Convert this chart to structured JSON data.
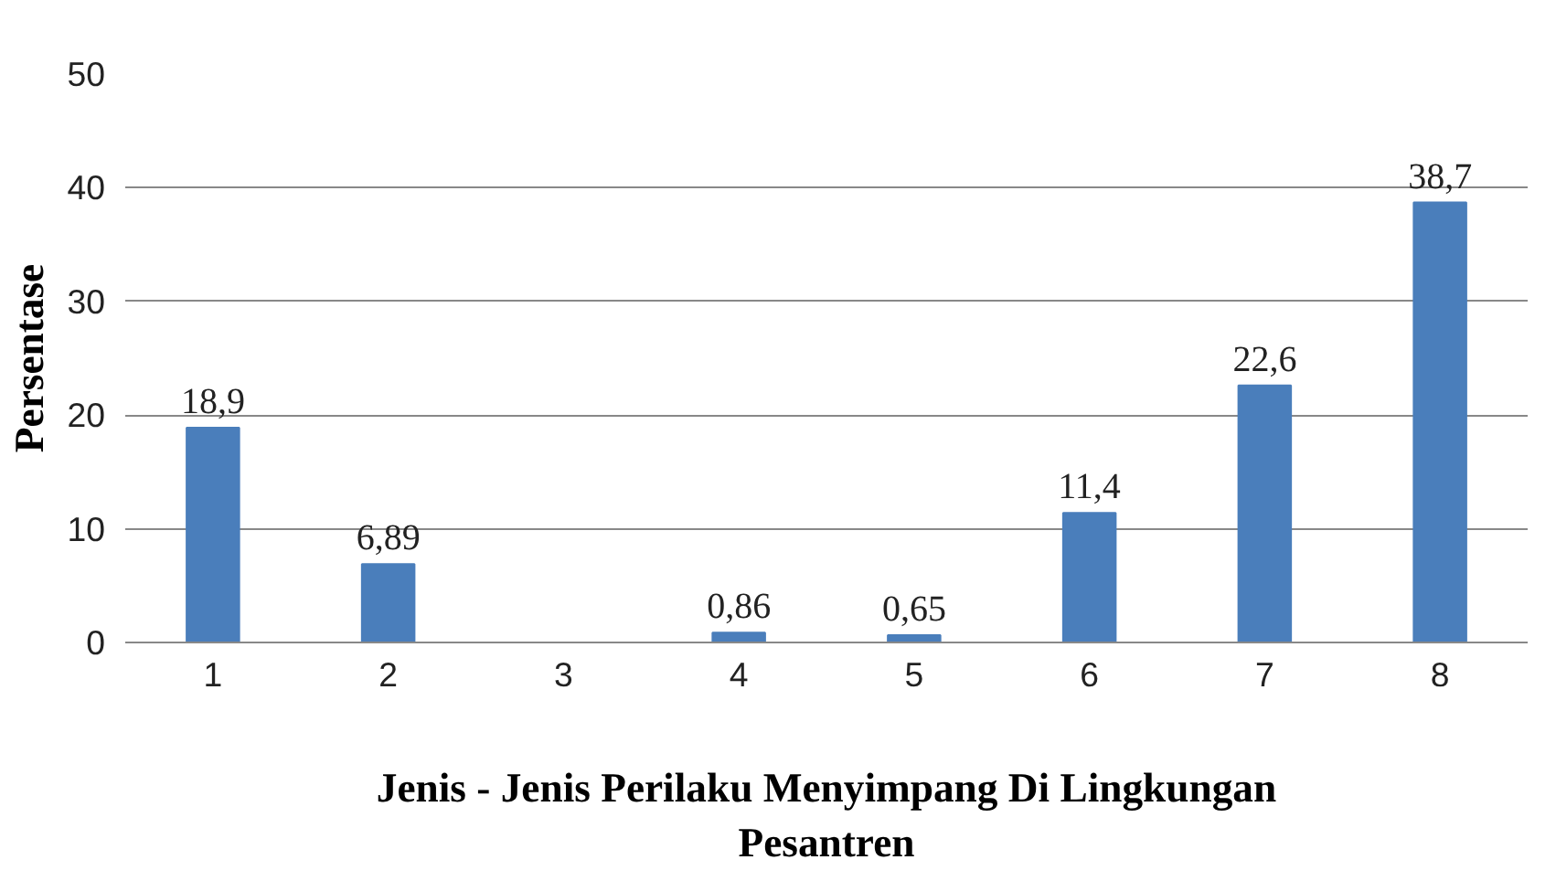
{
  "chart_data": {
    "type": "bar",
    "xlabel": "Jenis - Jenis Perilaku Menyimpang Di Lingkungan Pesantren",
    "ylabel": "Persentase",
    "categories": [
      "1",
      "2",
      "3",
      "4",
      "5",
      "6",
      "7",
      "8"
    ],
    "values": [
      18.9,
      6.89,
      null,
      0.86,
      0.65,
      11.4,
      22.6,
      38.7
    ],
    "value_labels": [
      "18,9",
      "6,89",
      null,
      "0,86",
      "0,65",
      "11,4",
      "22,6",
      "38,7"
    ],
    "color": "#4a7ebb",
    "ylim": [
      0,
      50
    ],
    "yticks": [
      0,
      10,
      20,
      30,
      40,
      50
    ],
    "grid": "y"
  }
}
